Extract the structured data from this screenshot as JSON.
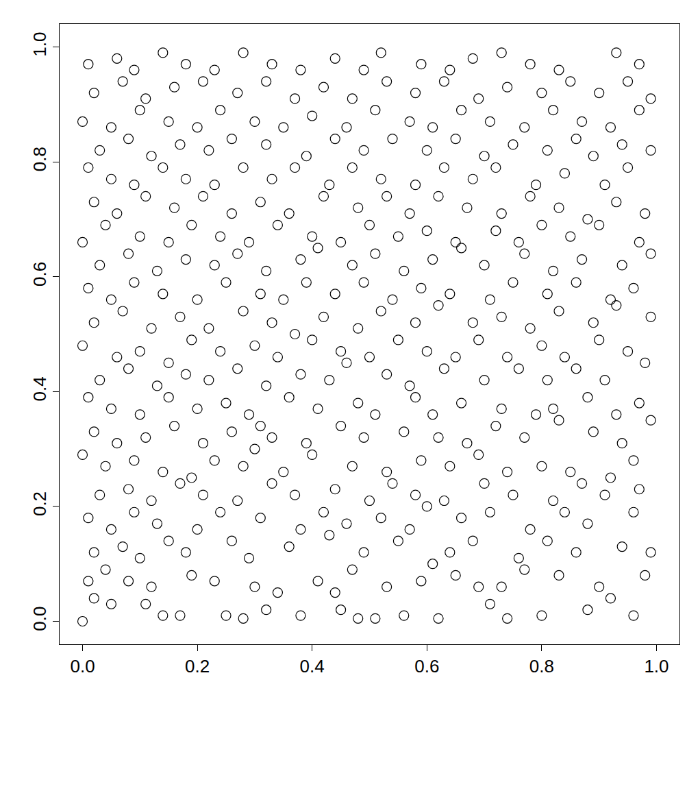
{
  "chart_data": {
    "type": "scatter",
    "marker": "circle-open",
    "color": "#000000",
    "grid": false,
    "xlim": [
      -0.04,
      1.04
    ],
    "ylim": [
      -0.04,
      1.04
    ],
    "xticks": [
      {
        "value": 0,
        "label": "0.0"
      },
      {
        "value": 0.2,
        "label": "0.2"
      },
      {
        "value": 0.4,
        "label": "0.4"
      },
      {
        "value": 0.6,
        "label": "0.6"
      },
      {
        "value": 0.8,
        "label": "0.8"
      },
      {
        "value": 1,
        "label": "1.0"
      }
    ],
    "yticks": [
      {
        "value": 0,
        "label": "0.0"
      },
      {
        "value": 0.2,
        "label": "0.2"
      },
      {
        "value": 0.4,
        "label": "0.4"
      },
      {
        "value": 0.6,
        "label": "0.6"
      },
      {
        "value": 0.8,
        "label": "0.8"
      },
      {
        "value": 1,
        "label": "1.0"
      }
    ],
    "x": [
      0.0,
      0.02,
      0.05,
      0.11,
      0.14,
      0.17,
      0.25,
      0.28,
      0.32,
      0.38,
      0.45,
      0.48,
      0.51,
      0.56,
      0.62,
      0.71,
      0.74,
      0.8,
      0.88,
      0.92,
      0.96,
      0.01,
      0.04,
      0.08,
      0.12,
      0.19,
      0.23,
      0.3,
      0.34,
      0.41,
      0.44,
      0.47,
      0.53,
      0.59,
      0.65,
      0.69,
      0.73,
      0.77,
      0.83,
      0.9,
      0.98,
      0.02,
      0.07,
      0.1,
      0.15,
      0.18,
      0.26,
      0.29,
      0.36,
      0.43,
      0.49,
      0.55,
      0.61,
      0.64,
      0.68,
      0.76,
      0.81,
      0.86,
      0.94,
      0.99,
      0.01,
      0.05,
      0.09,
      0.13,
      0.2,
      0.24,
      0.31,
      0.38,
      0.42,
      0.46,
      0.52,
      0.57,
      0.6,
      0.66,
      0.71,
      0.78,
      0.84,
      0.88,
      0.96,
      0.03,
      0.08,
      0.12,
      0.17,
      0.21,
      0.27,
      0.33,
      0.37,
      0.44,
      0.5,
      0.54,
      0.58,
      0.63,
      0.7,
      0.75,
      0.82,
      0.87,
      0.91,
      0.97,
      0.0,
      0.04,
      0.09,
      0.14,
      0.19,
      0.23,
      0.28,
      0.3,
      0.35,
      0.4,
      0.47,
      0.53,
      0.59,
      0.64,
      0.69,
      0.74,
      0.8,
      0.85,
      0.92,
      0.96,
      0.02,
      0.06,
      0.11,
      0.16,
      0.21,
      0.26,
      0.31,
      0.33,
      0.39,
      0.45,
      0.49,
      0.56,
      0.62,
      0.67,
      0.72,
      0.77,
      0.83,
      0.89,
      0.94,
      0.99,
      0.01,
      0.05,
      0.1,
      0.15,
      0.2,
      0.25,
      0.29,
      0.36,
      0.41,
      0.48,
      0.51,
      0.58,
      0.61,
      0.66,
      0.73,
      0.79,
      0.82,
      0.88,
      0.93,
      0.97,
      0.03,
      0.08,
      0.13,
      0.18,
      0.22,
      0.27,
      0.32,
      0.38,
      0.43,
      0.46,
      0.53,
      0.57,
      0.63,
      0.7,
      0.76,
      0.81,
      0.86,
      0.91,
      0.98,
      0.0,
      0.06,
      0.1,
      0.15,
      0.19,
      0.24,
      0.3,
      0.34,
      0.4,
      0.45,
      0.5,
      0.55,
      0.6,
      0.65,
      0.69,
      0.74,
      0.8,
      0.84,
      0.9,
      0.95,
      0.02,
      0.07,
      0.12,
      0.17,
      0.22,
      0.28,
      0.33,
      0.37,
      0.42,
      0.48,
      0.52,
      0.58,
      0.62,
      0.68,
      0.73,
      0.78,
      0.83,
      0.89,
      0.93,
      0.99,
      0.01,
      0.05,
      0.09,
      0.14,
      0.2,
      0.25,
      0.31,
      0.35,
      0.39,
      0.44,
      0.49,
      0.54,
      0.59,
      0.64,
      0.71,
      0.75,
      0.81,
      0.86,
      0.92,
      0.96,
      0.03,
      0.08,
      0.13,
      0.18,
      0.23,
      0.27,
      0.32,
      0.38,
      0.41,
      0.47,
      0.51,
      0.56,
      0.61,
      0.66,
      0.7,
      0.77,
      0.82,
      0.87,
      0.94,
      0.99,
      0.0,
      0.04,
      0.1,
      0.15,
      0.19,
      0.24,
      0.29,
      0.34,
      0.4,
      0.45,
      0.5,
      0.55,
      0.6,
      0.65,
      0.72,
      0.76,
      0.8,
      0.85,
      0.9,
      0.97,
      0.02,
      0.06,
      0.11,
      0.16,
      0.21,
      0.26,
      0.31,
      0.36,
      0.42,
      0.48,
      0.53,
      0.57,
      0.62,
      0.67,
      0.73,
      0.78,
      0.83,
      0.88,
      0.93,
      0.98,
      0.01,
      0.05,
      0.09,
      0.14,
      0.18,
      0.23,
      0.28,
      0.33,
      0.37,
      0.43,
      0.47,
      0.52,
      0.58,
      0.63,
      0.68,
      0.72,
      0.79,
      0.84,
      0.91,
      0.95,
      0.03,
      0.08,
      0.12,
      0.17,
      0.22,
      0.26,
      0.32,
      0.39,
      0.44,
      0.49,
      0.54,
      0.6,
      0.65,
      0.7,
      0.75,
      0.81,
      0.86,
      0.89,
      0.94,
      0.99,
      0.0,
      0.05,
      0.1,
      0.15,
      0.2,
      0.24,
      0.3,
      0.35,
      0.4,
      0.46,
      0.51,
      0.57,
      0.61,
      0.66,
      0.71,
      0.77,
      0.82,
      0.87,
      0.92,
      0.97,
      0.02,
      0.07,
      0.11,
      0.16,
      0.21,
      0.27,
      0.32,
      0.37,
      0.42,
      0.47,
      0.53,
      0.58,
      0.63,
      0.69,
      0.74,
      0.8,
      0.85,
      0.9,
      0.95,
      0.99,
      0.01,
      0.06,
      0.09,
      0.14,
      0.18,
      0.23,
      0.28,
      0.33,
      0.38,
      0.44,
      0.49,
      0.52,
      0.59,
      0.64,
      0.68,
      0.73,
      0.78,
      0.83,
      0.93,
      0.97
    ],
    "y": [
      0.0,
      0.04,
      0.03,
      0.03,
      0.01,
      0.01,
      0.01,
      0.005,
      0.02,
      0.01,
      0.02,
      0.005,
      0.005,
      0.01,
      0.005,
      0.03,
      0.005,
      0.01,
      0.02,
      0.04,
      0.01,
      0.07,
      0.09,
      0.07,
      0.06,
      0.08,
      0.07,
      0.06,
      0.05,
      0.07,
      0.05,
      0.09,
      0.06,
      0.07,
      0.08,
      0.06,
      0.06,
      0.09,
      0.08,
      0.06,
      0.08,
      0.12,
      0.13,
      0.11,
      0.14,
      0.12,
      0.14,
      0.11,
      0.13,
      0.15,
      0.12,
      0.14,
      0.1,
      0.12,
      0.14,
      0.11,
      0.14,
      0.12,
      0.13,
      0.12,
      0.18,
      0.16,
      0.19,
      0.17,
      0.16,
      0.19,
      0.18,
      0.16,
      0.19,
      0.17,
      0.18,
      0.16,
      0.2,
      0.18,
      0.19,
      0.16,
      0.19,
      0.17,
      0.19,
      0.22,
      0.23,
      0.21,
      0.24,
      0.22,
      0.21,
      0.24,
      0.22,
      0.23,
      0.21,
      0.24,
      0.22,
      0.21,
      0.24,
      0.22,
      0.21,
      0.24,
      0.22,
      0.23,
      0.29,
      0.27,
      0.28,
      0.26,
      0.25,
      0.28,
      0.27,
      0.3,
      0.26,
      0.29,
      0.27,
      0.26,
      0.28,
      0.27,
      0.29,
      0.26,
      0.27,
      0.26,
      0.25,
      0.28,
      0.33,
      0.31,
      0.32,
      0.34,
      0.31,
      0.33,
      0.34,
      0.32,
      0.31,
      0.34,
      0.32,
      0.33,
      0.32,
      0.31,
      0.34,
      0.32,
      0.35,
      0.33,
      0.31,
      0.35,
      0.39,
      0.37,
      0.36,
      0.39,
      0.37,
      0.38,
      0.36,
      0.39,
      0.37,
      0.38,
      0.36,
      0.39,
      0.36,
      0.38,
      0.37,
      0.36,
      0.37,
      0.39,
      0.36,
      0.38,
      0.42,
      0.44,
      0.41,
      0.43,
      0.42,
      0.44,
      0.41,
      0.43,
      0.42,
      0.45,
      0.43,
      0.41,
      0.44,
      0.42,
      0.44,
      0.42,
      0.44,
      0.42,
      0.45,
      0.48,
      0.46,
      0.47,
      0.45,
      0.49,
      0.47,
      0.48,
      0.46,
      0.49,
      0.47,
      0.46,
      0.49,
      0.47,
      0.46,
      0.49,
      0.46,
      0.48,
      0.46,
      0.49,
      0.47,
      0.52,
      0.54,
      0.51,
      0.53,
      0.51,
      0.54,
      0.52,
      0.5,
      0.53,
      0.51,
      0.54,
      0.52,
      0.55,
      0.52,
      0.53,
      0.51,
      0.54,
      0.52,
      0.55,
      0.53,
      0.58,
      0.56,
      0.59,
      0.57,
      0.56,
      0.59,
      0.57,
      0.56,
      0.59,
      0.57,
      0.59,
      0.56,
      0.58,
      0.57,
      0.56,
      0.59,
      0.57,
      0.59,
      0.56,
      0.58,
      0.62,
      0.64,
      0.61,
      0.63,
      0.62,
      0.64,
      0.61,
      0.63,
      0.65,
      0.62,
      0.64,
      0.61,
      0.63,
      0.65,
      0.62,
      0.64,
      0.61,
      0.63,
      0.62,
      0.64,
      0.66,
      0.69,
      0.67,
      0.66,
      0.69,
      0.67,
      0.66,
      0.69,
      0.67,
      0.66,
      0.69,
      0.67,
      0.68,
      0.66,
      0.68,
      0.66,
      0.69,
      0.67,
      0.69,
      0.66,
      0.73,
      0.71,
      0.74,
      0.72,
      0.74,
      0.71,
      0.73,
      0.71,
      0.74,
      0.72,
      0.74,
      0.71,
      0.74,
      0.72,
      0.71,
      0.74,
      0.72,
      0.7,
      0.73,
      0.71,
      0.79,
      0.77,
      0.76,
      0.79,
      0.77,
      0.76,
      0.79,
      0.77,
      0.79,
      0.76,
      0.79,
      0.77,
      0.76,
      0.79,
      0.77,
      0.79,
      0.76,
      0.78,
      0.76,
      0.79,
      0.82,
      0.84,
      0.81,
      0.83,
      0.82,
      0.84,
      0.83,
      0.81,
      0.84,
      0.82,
      0.84,
      0.82,
      0.84,
      0.81,
      0.83,
      0.82,
      0.84,
      0.81,
      0.83,
      0.82,
      0.87,
      0.86,
      0.89,
      0.87,
      0.86,
      0.89,
      0.87,
      0.86,
      0.88,
      0.86,
      0.89,
      0.87,
      0.86,
      0.89,
      0.87,
      0.86,
      0.89,
      0.87,
      0.86,
      0.89,
      0.92,
      0.94,
      0.91,
      0.93,
      0.94,
      0.92,
      0.94,
      0.91,
      0.93,
      0.91,
      0.94,
      0.92,
      0.94,
      0.91,
      0.93,
      0.92,
      0.94,
      0.92,
      0.94,
      0.91,
      0.97,
      0.98,
      0.96,
      0.99,
      0.97,
      0.96,
      0.99,
      0.97,
      0.96,
      0.98,
      0.96,
      0.99,
      0.97,
      0.96,
      0.98,
      0.99,
      0.97,
      0.96,
      0.99,
      0.97
    ]
  }
}
